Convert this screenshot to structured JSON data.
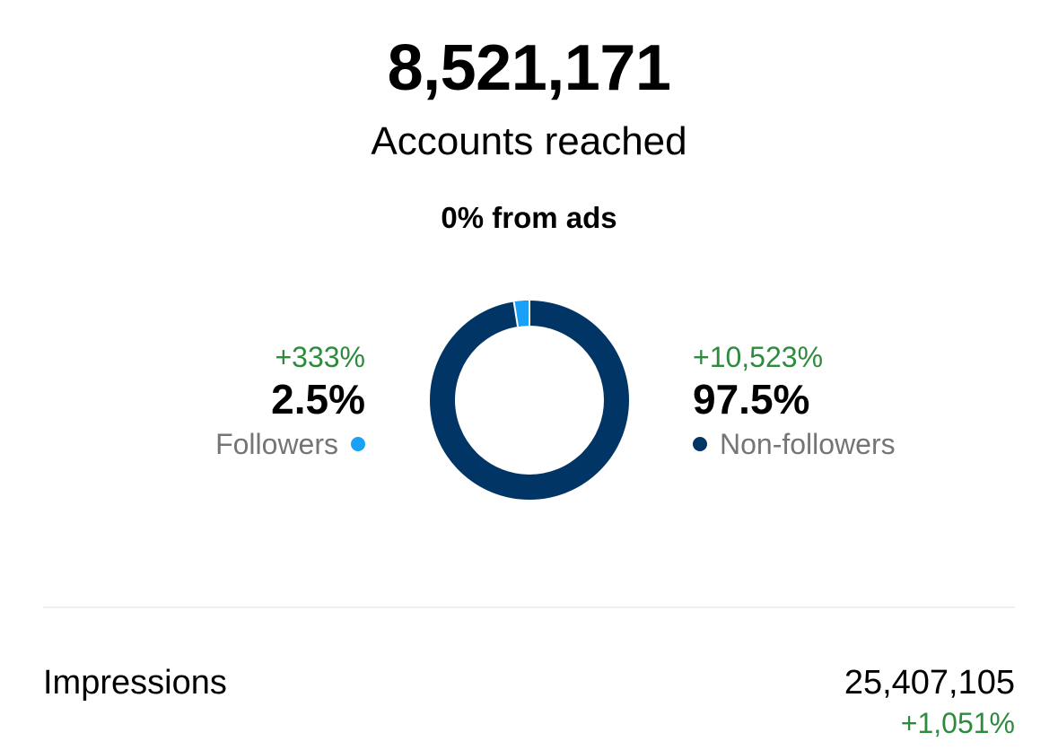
{
  "reach": {
    "total": "8,521,171",
    "label": "Accounts reached",
    "ads_note": "0% from ads"
  },
  "colors": {
    "followers": "#1aa0f5",
    "non_followers": "#003566",
    "positive_change": "#2e8b3e",
    "muted_text": "#757575"
  },
  "breakdown": {
    "followers": {
      "change": "+333%",
      "percent": "2.5%",
      "label": "Followers",
      "value": 2.5
    },
    "non_followers": {
      "change": "+10,523%",
      "percent": "97.5%",
      "label": "Non-followers",
      "value": 97.5
    }
  },
  "impressions": {
    "label": "Impressions",
    "value": "25,407,105",
    "change": "+1,051%"
  }
}
